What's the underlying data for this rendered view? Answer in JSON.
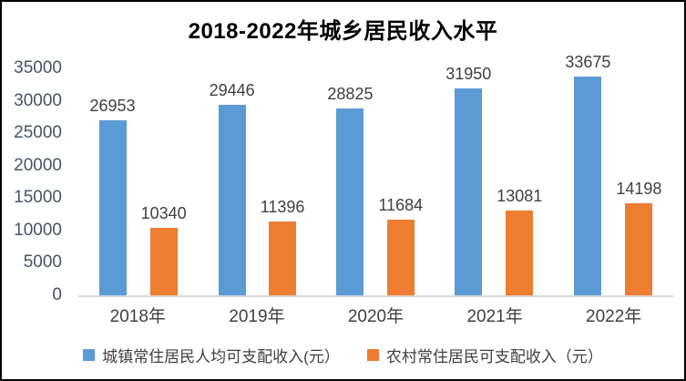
{
  "frame": {
    "border_color": "#000000",
    "background": "#FFFFFF"
  },
  "chart_data": {
    "type": "bar",
    "title": "2018-2022年城乡居民收入水平",
    "categories": [
      "2018年",
      "2019年",
      "2020年",
      "2021年",
      "2022年"
    ],
    "series": [
      {
        "name": "城镇常住居民人均可支配收入(元）",
        "color": "#5B9BD5",
        "values": [
          26953,
          29446,
          28825,
          31950,
          33675
        ]
      },
      {
        "name": "农村常住居民可支配收入（元）",
        "color": "#ED7D31",
        "values": [
          10340,
          11396,
          11684,
          13081,
          14198
        ]
      }
    ],
    "ylim": [
      0,
      35000
    ],
    "yticks": [
      0,
      5000,
      10000,
      15000,
      20000,
      25000,
      30000,
      35000
    ],
    "grid": false,
    "data_labels": true,
    "legend_position": "bottom",
    "styles": {
      "title_color": "#000000",
      "ytick_color": "#44546A",
      "xtick_color": "#404040",
      "data_label_color": "#404040",
      "legend_text_color": "#404040",
      "axis_line_color": "#D9D9D9"
    }
  }
}
